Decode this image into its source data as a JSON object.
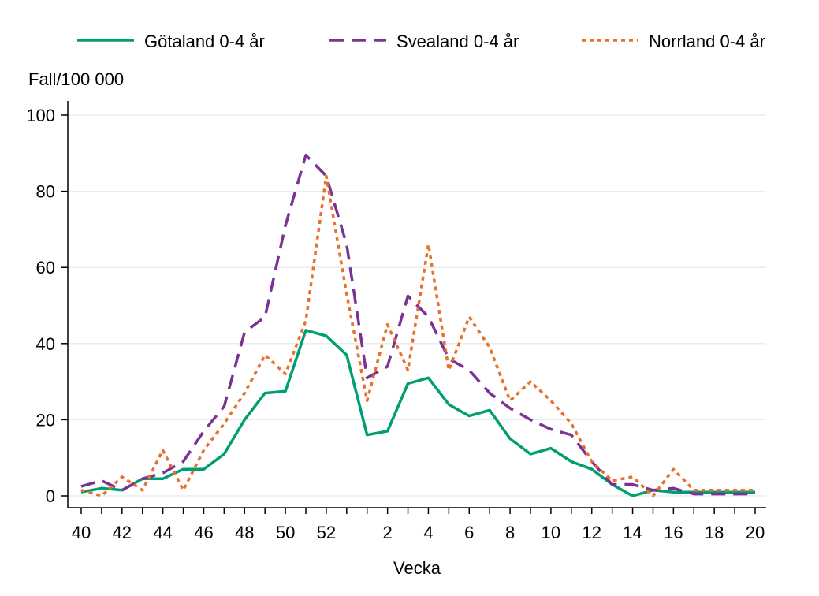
{
  "chart_data": {
    "type": "line",
    "title": "",
    "xlabel": "Vecka",
    "ylabel": "Fall/100 000",
    "ylim": [
      0,
      100
    ],
    "y_ticks": [
      "0",
      "20",
      "40",
      "60",
      "80",
      "100"
    ],
    "y_tick_values": [
      0,
      20,
      40,
      60,
      80,
      100
    ],
    "x_tick_labels": [
      "40",
      "42",
      "44",
      "46",
      "48",
      "50",
      "52",
      "2",
      "4",
      "6",
      "8",
      "10",
      "12",
      "14",
      "16",
      "18",
      "20"
    ],
    "x": [
      "40",
      "41",
      "42",
      "43",
      "44",
      "45",
      "46",
      "47",
      "48",
      "49",
      "50",
      "51",
      "52",
      "53",
      "1",
      "2",
      "3",
      "4",
      "5",
      "6",
      "7",
      "8",
      "9",
      "10",
      "11",
      "12",
      "13",
      "14",
      "15",
      "16",
      "17",
      "18",
      "19",
      "20"
    ],
    "legend_position": "top",
    "grid": true,
    "series": [
      {
        "name": "Götaland 0-4 år",
        "color": "#009e73",
        "style": "solid",
        "values": [
          1,
          2,
          1.5,
          4.5,
          4.5,
          7,
          7,
          11,
          20,
          27,
          27.5,
          43.5,
          42,
          37,
          16,
          17,
          29.5,
          31,
          24,
          21,
          22.5,
          15,
          11,
          12.5,
          9,
          7,
          3,
          0,
          1.5,
          1,
          1,
          1,
          1,
          1
        ]
      },
      {
        "name": "Svealand 0-4 år",
        "color": "#7b3294",
        "style": "dashed",
        "values": [
          2.5,
          4,
          1.5,
          4.5,
          6,
          9,
          17,
          23.5,
          43,
          47,
          71,
          89.5,
          84,
          66,
          31,
          34,
          52.5,
          47,
          36,
          33,
          27,
          23,
          20,
          17.5,
          16,
          9,
          3,
          3,
          1.5,
          2,
          0.5,
          0.5,
          0.5,
          0.5
        ]
      },
      {
        "name": "Norrland 0-4 år",
        "color": "#e8702a",
        "style": "dotted",
        "values": [
          1.5,
          0,
          5,
          1.5,
          12,
          1.5,
          12,
          19,
          27,
          37,
          32,
          46,
          84,
          53,
          25,
          45,
          33,
          66,
          33,
          47,
          39,
          25,
          30,
          25,
          19,
          9,
          4,
          5,
          0,
          7,
          1.5,
          1.5,
          1.5,
          1.5
        ]
      }
    ]
  }
}
